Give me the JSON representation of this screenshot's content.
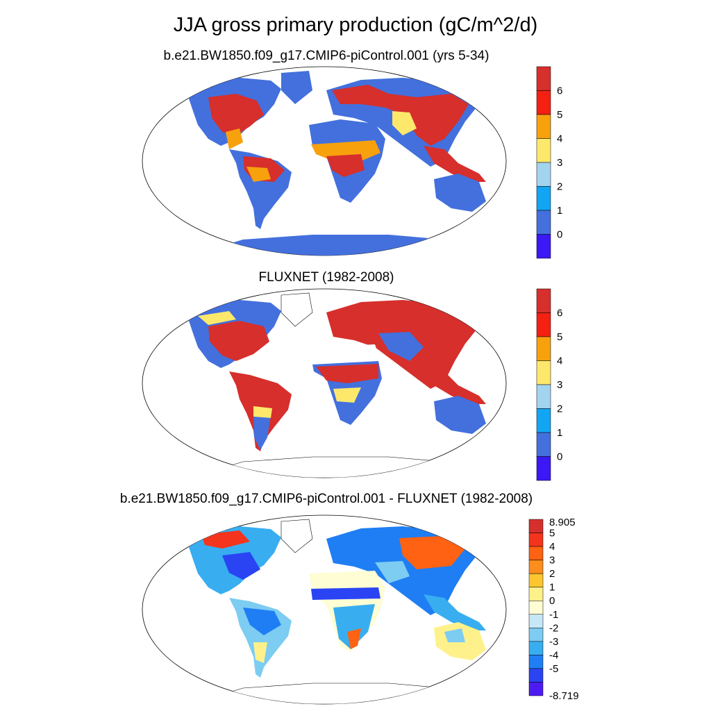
{
  "title": "JJA gross primary production (gC/m^2/d)",
  "panels": [
    {
      "subtitle": "b.e21.BW1850.f09_g17.CMIP6-piControl.001 (yrs 5-34)",
      "colorbar": {
        "labels": [
          "6",
          "5",
          "4",
          "3",
          "2",
          "1",
          "0"
        ],
        "colors": [
          "#d62f2c",
          "#f42011",
          "#f7a10d",
          "#fde86c",
          "#a3d4ef",
          "#12a5f4",
          "#4370dd",
          "#3b18f5"
        ]
      }
    },
    {
      "subtitle": "FLUXNET (1982-2008)",
      "colorbar": {
        "labels": [
          "6",
          "5",
          "4",
          "3",
          "2",
          "1",
          "0"
        ],
        "colors": [
          "#d62f2c",
          "#f42011",
          "#f7a10d",
          "#fde86c",
          "#a3d4ef",
          "#12a5f4",
          "#4370dd",
          "#3b18f5"
        ]
      }
    },
    {
      "subtitle": "b.e21.BW1850.f09_g17.CMIP6-piControl.001 - FLUXNET (1982-2008)",
      "colorbar": {
        "labels": [
          "8.905",
          "5",
          "4",
          "3",
          "2",
          "1",
          "0",
          "-1",
          "-2",
          "-3",
          "-4",
          "-5",
          "-8.719"
        ],
        "colors": [
          "#d62f2c",
          "#f4341c",
          "#fe6212",
          "#fd8e1e",
          "#fdc62f",
          "#fef18c",
          "#fefdd3",
          "#c6e7f6",
          "#7dccf2",
          "#38aef0",
          "#1f7ef3",
          "#2a44f4",
          "#4d1af2"
        ]
      }
    }
  ]
}
